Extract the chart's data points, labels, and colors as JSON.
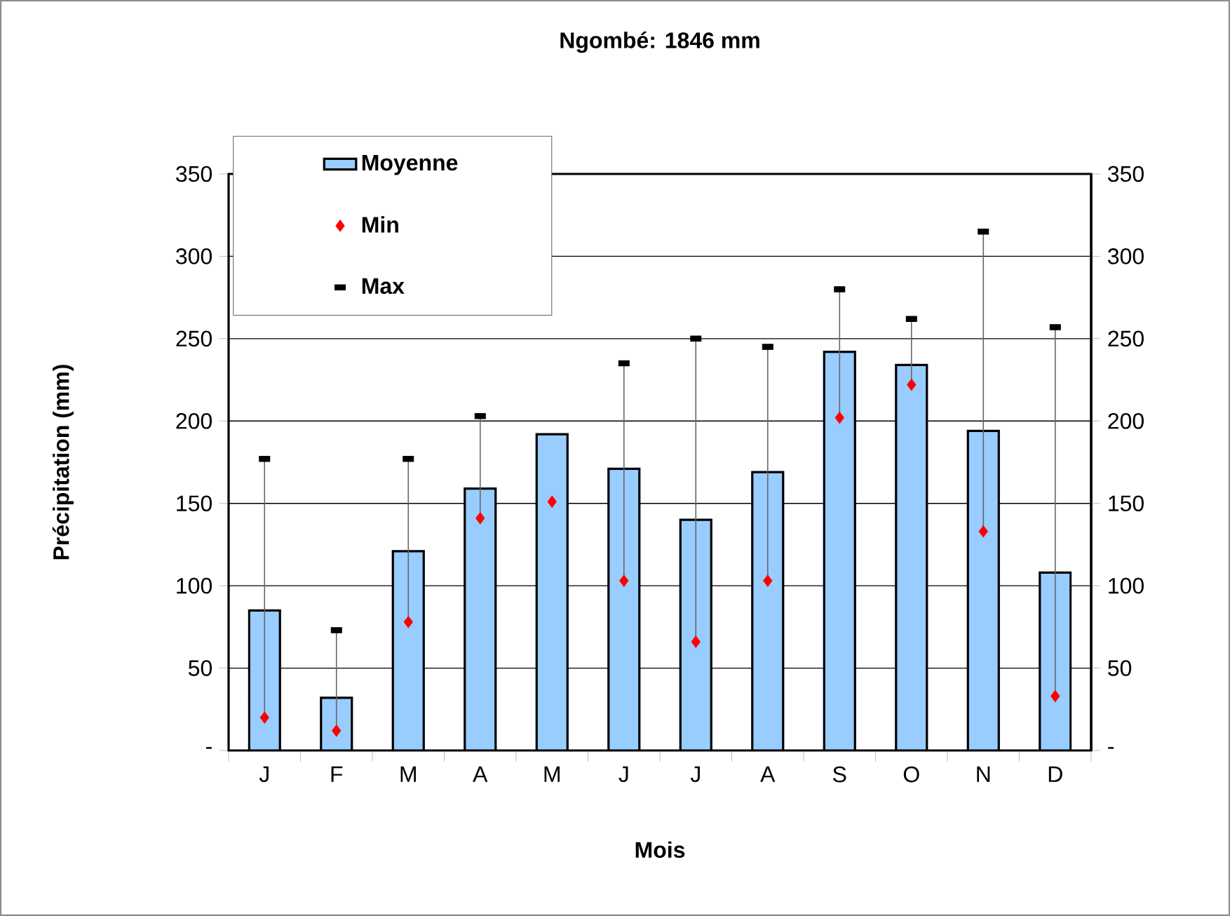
{
  "chart_data": {
    "type": "bar",
    "title": "Ngombé: 1846 mm",
    "xlabel": "Mois",
    "ylabel": "Précipitation (mm)",
    "categories": [
      "J",
      "F",
      "M",
      "A",
      "M",
      "J",
      "J",
      "A",
      "S",
      "O",
      "N",
      "D"
    ],
    "series": [
      {
        "name": "Moyenne",
        "color": "#99ccff",
        "values": [
          85,
          32,
          121,
          159,
          192,
          171,
          140,
          169,
          242,
          234,
          194,
          108
        ]
      },
      {
        "name": "Min",
        "type": "scatter",
        "marker": "diamond",
        "color": "#ff0000",
        "values": [
          20,
          12,
          78,
          141,
          151,
          103,
          66,
          103,
          202,
          222,
          133,
          33
        ]
      },
      {
        "name": "Max",
        "type": "scatter",
        "color": "#000000",
        "values": [
          177,
          73,
          177,
          203,
          null,
          235,
          250,
          245,
          280,
          262,
          315,
          257
        ]
      }
    ],
    "ylim": [
      0,
      350
    ],
    "yticks": [
      {
        "value": 0,
        "label": "-"
      },
      50,
      100,
      150,
      200,
      250,
      300,
      350
    ],
    "y2lim": [
      0,
      350
    ],
    "y2ticks": [
      {
        "value": 0,
        "label": "-"
      },
      50,
      100,
      150,
      200,
      250,
      300,
      350
    ],
    "grid": "y",
    "legend": "top left"
  }
}
